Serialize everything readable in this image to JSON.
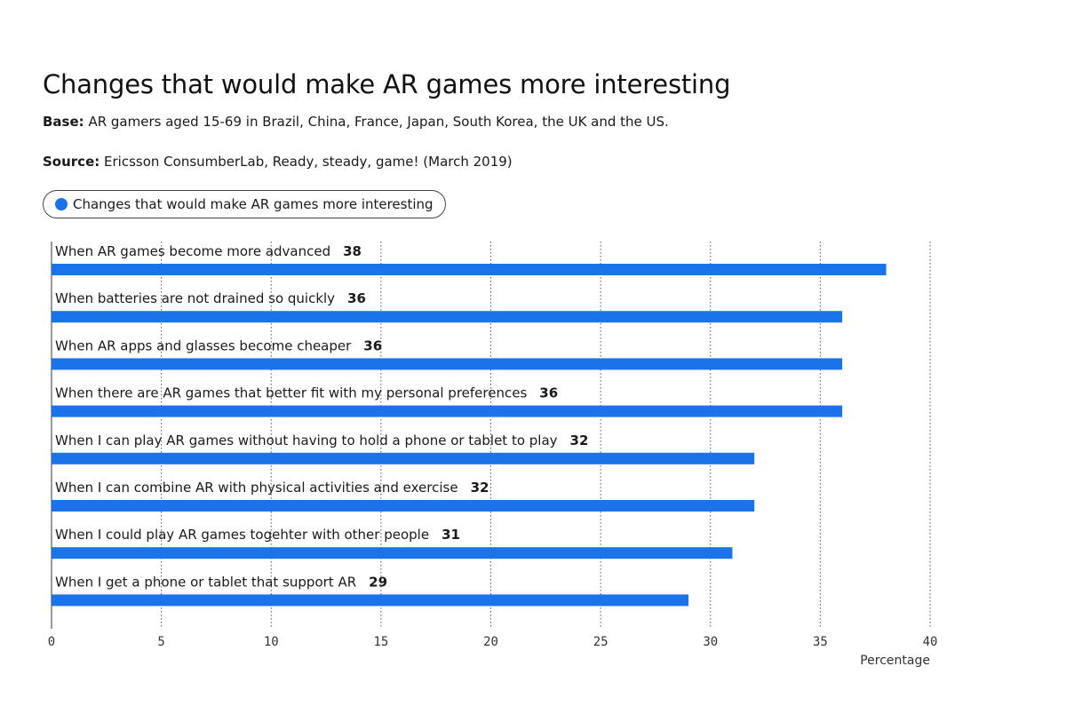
{
  "header": {
    "title": "Changes that would make AR games more interesting",
    "base_label": "Base:",
    "base_text": "AR gamers aged 15-69 in Brazil, China, France, Japan, South Korea, the UK and the US.",
    "source_label": "Source:",
    "source_text": "Ericsson ConsumberLab, Ready, steady, game! (March 2019)"
  },
  "legend": {
    "label": "Changes that would make AR games more interesting",
    "color": "#1a73e8"
  },
  "chart_data": {
    "type": "bar",
    "orientation": "horizontal",
    "categories": [
      "When AR games become more advanced",
      "When batteries are not drained so quickly",
      "When AR apps and glasses become cheaper",
      "When there are AR games that better fit with my personal preferences",
      "When I can play AR games without having to hold a phone or tablet to play",
      "When I can combine AR with physical activities and exercise",
      "When I could play AR games togehter with other people",
      "When I get a phone or tablet that support AR"
    ],
    "series": [
      {
        "name": "Changes that would make AR games more interesting",
        "values": [
          38,
          36,
          36,
          36,
          32,
          32,
          31,
          29
        ],
        "color": "#1a73e8"
      }
    ],
    "xlim": [
      0,
      40
    ],
    "xticks": [
      0,
      5,
      10,
      15,
      20,
      25,
      30,
      35,
      40
    ],
    "xlabel": "Percentage",
    "grid": "vertical dotted",
    "data_labels": true
  }
}
